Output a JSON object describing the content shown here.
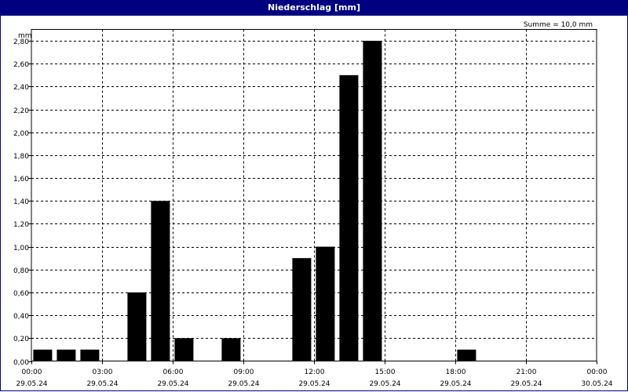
{
  "window": {
    "title": "Niederschlag [mm]"
  },
  "chart_data": {
    "type": "bar",
    "y_unit": "mm",
    "summary": "Summe = 10,0 mm",
    "ylim": [
      0,
      2.9
    ],
    "y_ticks": [
      "0,00",
      "0,20",
      "0,40",
      "0,60",
      "0,80",
      "1,00",
      "1,20",
      "1,40",
      "1,60",
      "1,80",
      "2,00",
      "2,20",
      "2,40",
      "2,60",
      "2,80"
    ],
    "x_ticks": [
      {
        "time": "00:00",
        "date": "29.05.24"
      },
      {
        "time": "03:00",
        "date": "29.05.24"
      },
      {
        "time": "06:00",
        "date": "29.05.24"
      },
      {
        "time": "09:00",
        "date": "29.05.24"
      },
      {
        "time": "12:00",
        "date": "29.05.24"
      },
      {
        "time": "15:00",
        "date": "29.05.24"
      },
      {
        "time": "18:00",
        "date": "29.05.24"
      },
      {
        "time": "21:00",
        "date": "29.05.24"
      },
      {
        "time": "00:00",
        "date": "30.05.24"
      }
    ],
    "bar_color": "#000000",
    "grid": true,
    "bars": [
      {
        "time": "00:00",
        "value": 0.1
      },
      {
        "time": "01:00",
        "value": 0.1
      },
      {
        "time": "02:00",
        "value": 0.1
      },
      {
        "time": "04:00",
        "value": 0.6
      },
      {
        "time": "05:00",
        "value": 1.4
      },
      {
        "time": "06:00",
        "value": 0.2
      },
      {
        "time": "08:00",
        "value": 0.2
      },
      {
        "time": "11:00",
        "value": 0.9
      },
      {
        "time": "12:00",
        "value": 1.0
      },
      {
        "time": "13:00",
        "value": 2.5
      },
      {
        "time": "14:00",
        "value": 2.8
      },
      {
        "time": "18:00",
        "value": 0.1
      }
    ]
  }
}
